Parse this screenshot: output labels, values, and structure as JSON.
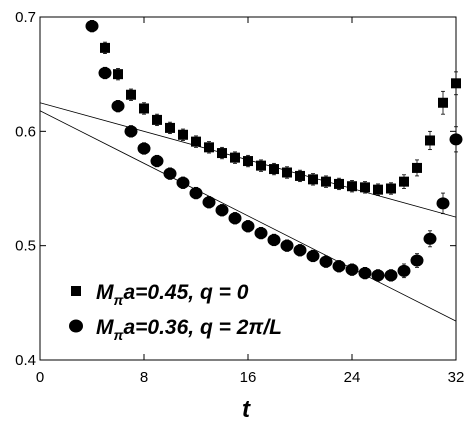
{
  "chart_data": {
    "type": "scatter",
    "title": "",
    "xlabel": "t",
    "ylabel": "",
    "xlim": [
      0,
      32
    ],
    "ylim": [
      0.4,
      0.7
    ],
    "xticks": [
      "0",
      "8",
      "16",
      "24",
      "32"
    ],
    "yticks": [
      "0.4",
      "0.5",
      "0.6",
      "0.7"
    ],
    "grid": false,
    "legend_position": "bottom-left",
    "series": [
      {
        "name": "Mπa=0.45, q = 0",
        "legend_main": "M",
        "legend_sub": "π",
        "legend_rest": "a=0.45, q = 0",
        "marker": "square",
        "color": "#000000",
        "x": [
          5,
          6,
          7,
          8,
          9,
          10,
          11,
          12,
          13,
          14,
          15,
          16,
          17,
          18,
          19,
          20,
          21,
          22,
          23,
          24,
          25,
          26,
          27,
          28,
          29,
          30,
          31,
          32
        ],
        "y": [
          0.673,
          0.65,
          0.632,
          0.62,
          0.61,
          0.603,
          0.597,
          0.591,
          0.586,
          0.581,
          0.577,
          0.574,
          0.57,
          0.567,
          0.564,
          0.561,
          0.558,
          0.556,
          0.554,
          0.552,
          0.551,
          0.549,
          0.55,
          0.556,
          0.568,
          0.592,
          0.625,
          0.642
        ],
        "err": [
          0.005,
          0.005,
          0.005,
          0.005,
          0.005,
          0.005,
          0.005,
          0.005,
          0.005,
          0.005,
          0.005,
          0.005,
          0.005,
          0.005,
          0.005,
          0.005,
          0.005,
          0.005,
          0.005,
          0.005,
          0.005,
          0.005,
          0.005,
          0.006,
          0.007,
          0.008,
          0.01,
          0.01
        ]
      },
      {
        "name": "Mπa=0.36, q = 2π/L",
        "legend_main": "M",
        "legend_sub": "π",
        "legend_rest": "a=0.36, q = 2π/L",
        "marker": "circle",
        "color": "#000000",
        "x": [
          4,
          5,
          6,
          7,
          8,
          9,
          10,
          11,
          12,
          13,
          14,
          15,
          16,
          17,
          18,
          19,
          20,
          21,
          22,
          23,
          24,
          25,
          26,
          27,
          28,
          29,
          30,
          31,
          32
        ],
        "y": [
          0.692,
          0.651,
          0.622,
          0.6,
          0.585,
          0.574,
          0.563,
          0.555,
          0.546,
          0.538,
          0.531,
          0.524,
          0.517,
          0.511,
          0.505,
          0.5,
          0.496,
          0.491,
          0.486,
          0.482,
          0.479,
          0.476,
          0.474,
          0.474,
          0.478,
          0.487,
          0.506,
          0.537,
          0.593
        ],
        "err": [
          0.005,
          0.005,
          0.005,
          0.005,
          0.005,
          0.005,
          0.005,
          0.005,
          0.005,
          0.005,
          0.005,
          0.005,
          0.005,
          0.005,
          0.005,
          0.005,
          0.005,
          0.005,
          0.005,
          0.005,
          0.005,
          0.005,
          0.005,
          0.005,
          0.006,
          0.006,
          0.007,
          0.009,
          0.011
        ]
      }
    ],
    "fit_lines": [
      {
        "x": [
          0,
          32
        ],
        "y": [
          0.625,
          0.525
        ]
      },
      {
        "x": [
          0,
          32
        ],
        "y": [
          0.618,
          0.434
        ]
      }
    ]
  }
}
